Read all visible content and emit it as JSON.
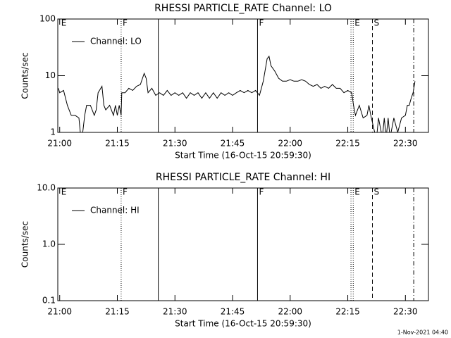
{
  "chart_data": [
    {
      "type": "line",
      "title": "RHESSI PARTICLE_RATE Channel: LO",
      "xlabel": "Start Time (16-Oct-15 20:59:30)",
      "ylabel": "Counts/sec",
      "log_y": true,
      "legend": "upper left",
      "xlim": [
        "20:59:30",
        "22:36"
      ],
      "xticks": [
        "21:00",
        "21:15",
        "21:30",
        "21:45",
        "22:00",
        "22:15",
        "22:30"
      ],
      "ylim": [
        1,
        100
      ],
      "yticks": [
        1,
        10,
        100
      ],
      "series": [
        {
          "name": "Channel: LO",
          "color": "#000000",
          "x": [
            "20:59:40",
            "21:00",
            "21:01",
            "21:02",
            "21:03",
            "21:04",
            "21:05",
            "21:05:30",
            "21:06",
            "21:06:30",
            "21:07",
            "21:08",
            "21:09",
            "21:09:30",
            "21:10",
            "21:11",
            "21:11:30",
            "21:12",
            "21:13",
            "21:14",
            "21:14:30",
            "21:15",
            "21:15:30",
            "21:16",
            "21:16:10",
            "21:17",
            "21:18",
            "21:19",
            "21:20",
            "21:21",
            "21:22",
            "21:22:30",
            "21:23",
            "21:24",
            "21:25",
            "21:26",
            "21:27",
            "21:28",
            "21:29",
            "21:30",
            "21:31",
            "21:32",
            "21:33",
            "21:34",
            "21:35",
            "21:36",
            "21:37",
            "21:38",
            "21:39",
            "21:40",
            "21:41",
            "21:42",
            "21:43",
            "21:44",
            "21:45",
            "21:46",
            "21:47",
            "21:48",
            "21:49",
            "21:50",
            "21:51",
            "21:52",
            "21:53",
            "21:54",
            "21:54:30",
            "21:55",
            "21:56",
            "21:57",
            "21:58",
            "21:59",
            "22:00",
            "22:01",
            "22:02",
            "22:03",
            "22:04",
            "22:05",
            "22:06",
            "22:07",
            "22:08",
            "22:09",
            "22:10",
            "22:11",
            "22:12",
            "22:13",
            "22:14",
            "22:15",
            "22:16",
            "22:16:30",
            "22:17",
            "22:18",
            "22:19",
            "22:20",
            "22:20:30",
            "22:21",
            "22:22",
            "22:22:30",
            "22:23",
            "22:24",
            "22:24:30",
            "22:25",
            "22:25:30",
            "22:26",
            "22:27",
            "22:28",
            "22:29",
            "22:30",
            "22:30:30",
            "22:31",
            "22:31:30",
            "22:32",
            "22:32:30"
          ],
          "values": [
            6,
            5,
            5.5,
            3,
            2,
            2,
            1.8,
            0.8,
            1,
            2,
            3,
            3,
            2,
            2.5,
            5,
            6.5,
            3,
            2.5,
            3,
            2,
            3,
            2,
            3,
            2,
            5,
            5,
            6,
            5.5,
            6.5,
            7,
            11,
            9,
            5,
            6,
            4.5,
            5,
            4.5,
            5.5,
            4.5,
            5,
            4.5,
            5,
            4,
            5,
            4.5,
            5,
            4,
            5,
            4,
            5,
            4,
            5,
            4.5,
            5,
            4.5,
            5,
            5.5,
            5,
            5.5,
            5,
            5.5,
            4.5,
            8,
            20,
            22,
            15,
            12,
            9,
            8,
            8,
            8.5,
            8,
            8,
            8.5,
            8,
            7,
            6.5,
            7,
            6,
            6.5,
            6,
            7,
            6,
            6,
            5,
            5.5,
            5,
            3,
            2,
            3,
            1.8,
            2,
            3,
            2,
            1,
            0.8,
            1.8,
            0.8,
            1.8,
            0.8,
            1.8,
            0.8,
            1.8,
            1,
            1.8,
            2,
            3,
            3,
            4,
            5,
            8
          ]
        }
      ],
      "markers": [
        {
          "x": "21:00",
          "label": "E"
        },
        {
          "x": "21:16",
          "style": "dotted",
          "label": "F"
        },
        {
          "x": "21:25:40",
          "style": "solid"
        },
        {
          "x": "21:51:30",
          "style": "solid",
          "label": "F"
        },
        {
          "x": "22:15:50",
          "style": "dotted"
        },
        {
          "x": "22:16:25",
          "style": "dotted",
          "label": "E"
        },
        {
          "x": "22:21:25",
          "style": "dashed",
          "label": "S"
        },
        {
          "x": "22:32:10",
          "style": "dash-dot"
        }
      ]
    },
    {
      "type": "line",
      "title": "RHESSI PARTICLE_RATE Channel: HI",
      "xlabel": "Start Time (16-Oct-15 20:59:30)",
      "ylabel": "Counts/sec",
      "log_y": true,
      "legend": "upper left",
      "xlim": [
        "20:59:30",
        "22:36"
      ],
      "xticks": [
        "21:00",
        "21:15",
        "21:30",
        "21:45",
        "22:00",
        "22:15",
        "22:30"
      ],
      "ylim": [
        0.1,
        10
      ],
      "yticks": [
        0.1,
        {
          "value": 1,
          "label": "1.0"
        },
        {
          "value": 10,
          "label": "10.0"
        }
      ],
      "series": [
        {
          "name": "Channel: HI",
          "color": "#000000",
          "x": [],
          "values": []
        }
      ],
      "markers": [
        {
          "x": "21:00",
          "label": "E"
        },
        {
          "x": "21:16",
          "style": "dotted",
          "label": "F"
        },
        {
          "x": "21:25:40",
          "style": "solid"
        },
        {
          "x": "21:51:30",
          "style": "solid",
          "label": "F"
        },
        {
          "x": "22:15:50",
          "style": "dotted"
        },
        {
          "x": "22:16:25",
          "style": "dotted",
          "label": "E"
        },
        {
          "x": "22:21:25",
          "style": "dashed",
          "label": "S"
        },
        {
          "x": "22:32:10",
          "style": "dash-dot"
        }
      ]
    }
  ],
  "footer": "1-Nov-2021 04:40"
}
